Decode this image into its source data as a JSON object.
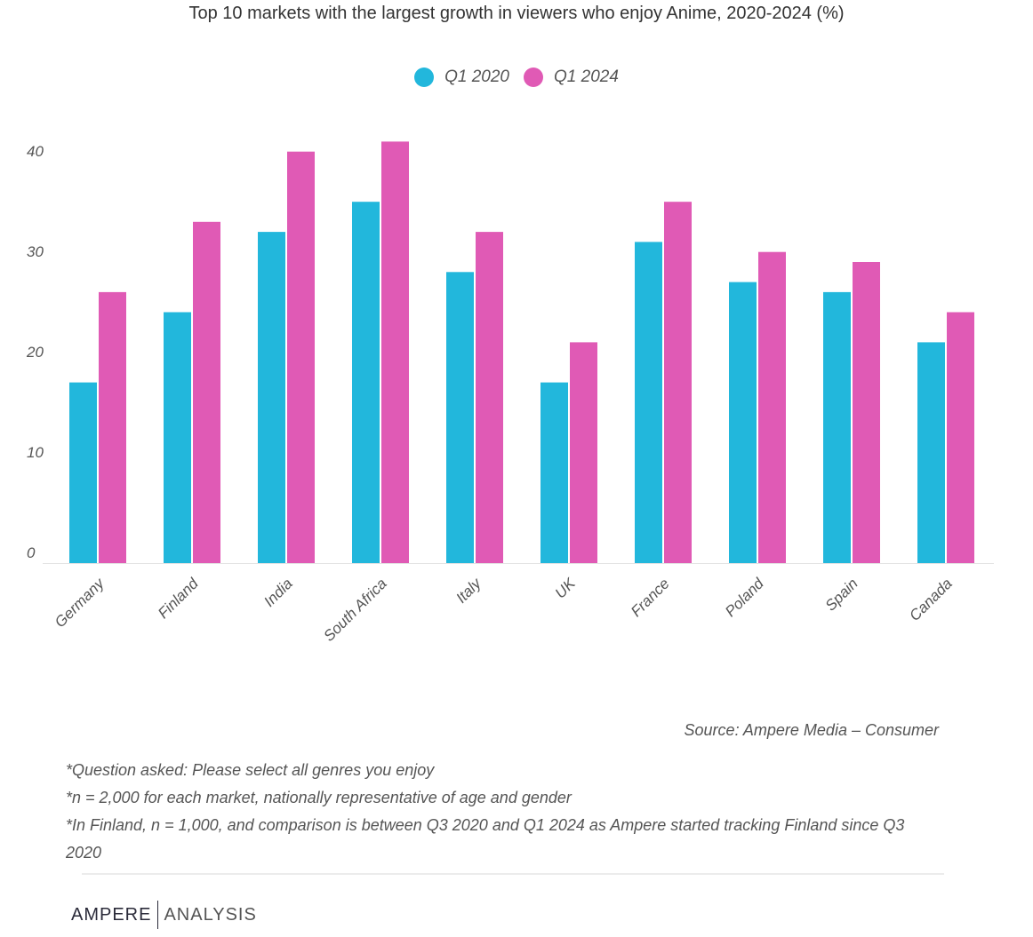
{
  "chart_data": {
    "type": "bar",
    "title": "Top 10 markets with the largest growth in viewers who enjoy Anime, 2020-2024 (%)",
    "categories": [
      "Germany",
      "Finland",
      "India",
      "South Africa",
      "Italy",
      "UK",
      "France",
      "Poland",
      "Spain",
      "Canada"
    ],
    "series": [
      {
        "name": "Q1 2020",
        "color": "#22b7dc",
        "values": [
          18,
          25,
          33,
          36,
          29,
          18,
          32,
          28,
          27,
          22
        ]
      },
      {
        "name": "Q1 2024",
        "color": "#e05ab5",
        "values": [
          27,
          34,
          41,
          42,
          33,
          22,
          36,
          31,
          30,
          25
        ]
      }
    ],
    "yticks": [
      0,
      10,
      20,
      30,
      40
    ],
    "ylim": [
      0,
      42
    ],
    "xlabel": "",
    "ylabel": "",
    "grid": false,
    "legend": "top-center"
  },
  "source": "Source: Ampere Media – Consumer",
  "notes": [
    "*Question asked: Please select all genres you enjoy",
    "*n = 2,000 for each market, nationally representative of age and gender",
    "*In Finland, n = 1,000, and comparison is between Q3 2020 and Q1 2024 as Ampere started tracking Finland since Q3 2020"
  ],
  "brand": {
    "part1": "AMPERE",
    "part2": "ANALYSIS"
  }
}
